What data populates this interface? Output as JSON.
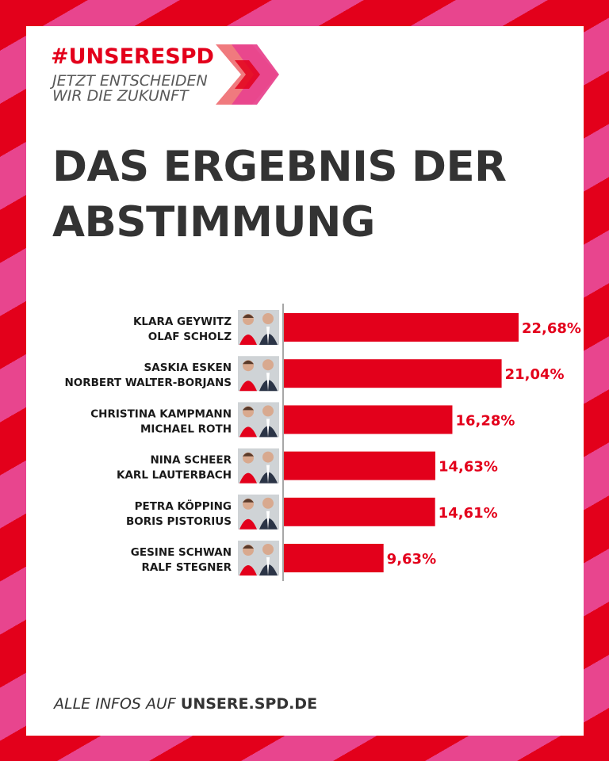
{
  "brand": {
    "hashtag": "#UNSERESPD",
    "claim_line1": "JETZT ENTSCHEIDEN",
    "claim_line2": "WIR DIE ZUKUNFT",
    "colors": {
      "red": "#e3001b",
      "pink": "#e8458e",
      "coral": "#f07a7e"
    }
  },
  "headline": {
    "line1": "DAS ERGEBNIS DER",
    "line2": "ABSTIMMUNG"
  },
  "chart_data": {
    "type": "bar",
    "orientation": "horizontal",
    "categories": [
      [
        "KLARA GEYWITZ",
        "OLAF SCHOLZ"
      ],
      [
        "SASKIA ESKEN",
        "NORBERT WALTER-BORJANS"
      ],
      [
        "CHRISTINA KAMPMANN",
        "MICHAEL ROTH"
      ],
      [
        "NINA SCHEER",
        "KARL LAUTERBACH"
      ],
      [
        "PETRA KÖPPING",
        "BORIS PISTORIUS"
      ],
      [
        "GESINE SCHWAN",
        "RALF STEGNER"
      ]
    ],
    "values": [
      22.68,
      21.04,
      16.28,
      14.63,
      14.61,
      9.63
    ],
    "value_labels": [
      "22,68%",
      "21,04%",
      "16,28%",
      "14,63%",
      "14,61%",
      "9,63%"
    ],
    "xlim": [
      0,
      25
    ],
    "bar_color": "#e3001b",
    "grid": false,
    "legend": "none"
  },
  "footer": {
    "lead": "ALLE INFOS AUF ",
    "url": "UNSERE.SPD.DE"
  }
}
